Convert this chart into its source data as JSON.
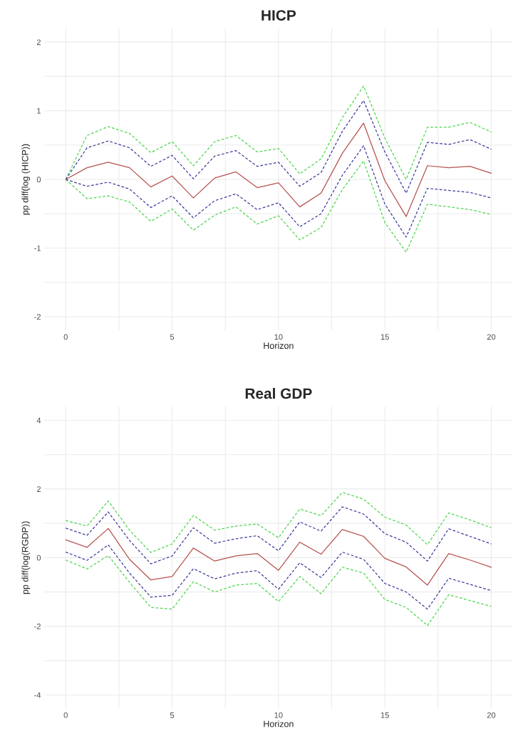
{
  "chart_data": [
    {
      "type": "line",
      "title": "HICP",
      "xlabel": "Horizon",
      "ylabel": "pp diff(log (HICP))",
      "x": [
        0,
        1,
        2,
        3,
        4,
        5,
        6,
        7,
        8,
        9,
        10,
        11,
        12,
        13,
        14,
        15,
        16,
        17,
        18,
        19,
        20
      ],
      "xlim": [
        -1,
        21
      ],
      "ylim": [
        -2.2,
        2.2
      ],
      "xticks": [
        0,
        {
          "value": 2.5,
          "label": null
        },
        5,
        {
          "value": 7.5,
          "label": null
        },
        10,
        {
          "value": 12.5,
          "label": null
        },
        15,
        {
          "value": 17.5,
          "label": null
        },
        20
      ],
      "yticks": [
        -2,
        {
          "value": -1.5,
          "label": null
        },
        -1,
        {
          "value": -0.5,
          "label": null
        },
        0,
        {
          "value": 0.5,
          "label": null
        },
        1,
        {
          "value": 1.5,
          "label": null
        },
        2
      ],
      "grid": true,
      "series": [
        {
          "color": "#4dd64d",
          "line_style": "dashed",
          "values": [
            0,
            0.64,
            0.77,
            0.67,
            0.39,
            0.55,
            0.2,
            0.55,
            0.64,
            0.4,
            0.45,
            0.08,
            0.3,
            0.9,
            1.36,
            0.6,
            0.0,
            0.76,
            0.76,
            0.83,
            0.69
          ]
        },
        {
          "color": "#4dd64d",
          "line_style": "dashed",
          "values": [
            0,
            -0.28,
            -0.24,
            -0.33,
            -0.61,
            -0.43,
            -0.74,
            -0.52,
            -0.4,
            -0.65,
            -0.53,
            -0.88,
            -0.7,
            -0.15,
            0.27,
            -0.63,
            -1.06,
            -0.36,
            -0.4,
            -0.44,
            -0.51
          ]
        },
        {
          "color": "#3c3c9c",
          "line_style": "dashed",
          "values": [
            0,
            0.46,
            0.56,
            0.46,
            0.19,
            0.35,
            0.01,
            0.34,
            0.42,
            0.19,
            0.25,
            -0.1,
            0.1,
            0.7,
            1.15,
            0.4,
            -0.2,
            0.54,
            0.51,
            0.58,
            0.44
          ]
        },
        {
          "color": "#3c3c9c",
          "line_style": "dashed",
          "values": [
            0,
            -0.1,
            -0.04,
            -0.14,
            -0.41,
            -0.24,
            -0.56,
            -0.31,
            -0.21,
            -0.44,
            -0.34,
            -0.69,
            -0.5,
            0.06,
            0.49,
            -0.36,
            -0.84,
            -0.13,
            -0.16,
            -0.19,
            -0.27
          ]
        },
        {
          "color": "#b5524f",
          "line_style": "solid",
          "values": [
            0,
            0.17,
            0.25,
            0.17,
            -0.11,
            0.05,
            -0.27,
            0.02,
            0.11,
            -0.12,
            -0.05,
            -0.4,
            -0.2,
            0.38,
            0.82,
            -0.02,
            -0.54,
            0.2,
            0.17,
            0.19,
            0.09
          ]
        }
      ]
    },
    {
      "type": "line",
      "title": "Real GDP",
      "xlabel": "Horizon",
      "ylabel": "pp diff(log(RGDP))",
      "x": [
        0,
        1,
        2,
        3,
        4,
        5,
        6,
        7,
        8,
        9,
        10,
        11,
        12,
        13,
        14,
        15,
        16,
        17,
        18,
        19,
        20
      ],
      "xlim": [
        -1,
        21
      ],
      "ylim": [
        -4.4,
        4.4
      ],
      "xticks": [
        0,
        {
          "value": 2.5,
          "label": null
        },
        5,
        {
          "value": 7.5,
          "label": null
        },
        10,
        {
          "value": 12.5,
          "label": null
        },
        15,
        {
          "value": 17.5,
          "label": null
        },
        20
      ],
      "yticks": [
        -4,
        {
          "value": -3,
          "label": null
        },
        -2,
        {
          "value": -1,
          "label": null
        },
        0,
        {
          "value": 1,
          "label": null
        },
        2,
        {
          "value": 3,
          "label": null
        },
        4
      ],
      "grid": true,
      "series": [
        {
          "color": "#4dd64d",
          "line_style": "dashed",
          "values": [
            1.08,
            0.92,
            1.65,
            0.8,
            0.15,
            0.4,
            1.23,
            0.8,
            0.92,
            0.98,
            0.58,
            1.42,
            1.22,
            1.9,
            1.7,
            1.18,
            0.95,
            0.38,
            1.3,
            1.1,
            0.87
          ]
        },
        {
          "color": "#4dd64d",
          "line_style": "dashed",
          "values": [
            -0.07,
            -0.33,
            0.06,
            -0.72,
            -1.45,
            -1.5,
            -0.7,
            -1.0,
            -0.8,
            -0.75,
            -1.28,
            -0.55,
            -1.05,
            -0.28,
            -0.45,
            -1.22,
            -1.45,
            -1.98,
            -1.08,
            -1.25,
            -1.42
          ]
        },
        {
          "color": "#3c3c9c",
          "line_style": "dashed",
          "values": [
            0.86,
            0.65,
            1.33,
            0.5,
            -0.18,
            0.05,
            0.87,
            0.42,
            0.55,
            0.64,
            0.2,
            1.04,
            0.77,
            1.48,
            1.27,
            0.7,
            0.45,
            -0.1,
            0.84,
            0.62,
            0.4
          ]
        },
        {
          "color": "#3c3c9c",
          "line_style": "dashed",
          "values": [
            0.16,
            -0.08,
            0.37,
            -0.45,
            -1.15,
            -1.1,
            -0.32,
            -0.62,
            -0.45,
            -0.38,
            -0.92,
            -0.15,
            -0.58,
            0.16,
            -0.05,
            -0.75,
            -1.0,
            -1.5,
            -0.6,
            -0.78,
            -0.96
          ]
        },
        {
          "color": "#b5524f",
          "line_style": "solid",
          "values": [
            0.52,
            0.3,
            0.85,
            -0.05,
            -0.65,
            -0.55,
            0.28,
            -0.1,
            0.05,
            0.12,
            -0.37,
            0.45,
            0.1,
            0.82,
            0.62,
            -0.02,
            -0.27,
            -0.8,
            0.12,
            -0.07,
            -0.28
          ]
        }
      ]
    }
  ]
}
